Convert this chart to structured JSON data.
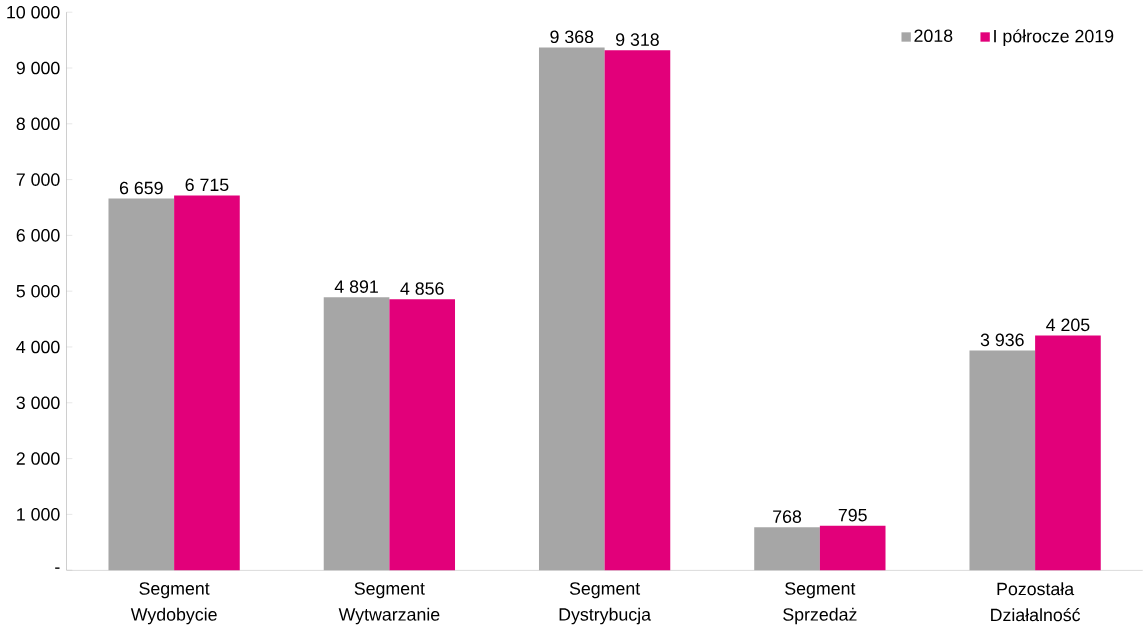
{
  "chart_data": {
    "type": "bar",
    "categories": [
      "Segment Wydobycie",
      "Segment Wytwarzanie",
      "Segment Dystrybucja",
      "Segment Sprzedaż",
      "Pozostała Działalność"
    ],
    "series": [
      {
        "name": "2018",
        "color": "#a6a6a6",
        "values": [
          6659,
          4891,
          9368,
          768,
          3936
        ],
        "value_labels": [
          "6 659",
          "4 891",
          "9 368",
          "768",
          "3 936"
        ]
      },
      {
        "name": "I półrocze 2019",
        "color": "#e2007a",
        "values": [
          6715,
          4856,
          9318,
          795,
          4205
        ],
        "value_labels": [
          "6 715",
          "4 856",
          "9 318",
          "795",
          "4 205"
        ]
      }
    ],
    "ylim": [
      0,
      10000
    ],
    "yticks": [
      {
        "value": 0,
        "label": "-"
      },
      {
        "value": 1000,
        "label": "1 000"
      },
      {
        "value": 2000,
        "label": "2 000"
      },
      {
        "value": 3000,
        "label": "3 000"
      },
      {
        "value": 4000,
        "label": "4 000"
      },
      {
        "value": 5000,
        "label": "5 000"
      },
      {
        "value": 6000,
        "label": "6 000"
      },
      {
        "value": 7000,
        "label": "7 000"
      },
      {
        "value": 8000,
        "label": "8 000"
      },
      {
        "value": 9000,
        "label": "9 000"
      },
      {
        "value": 10000,
        "label": "10 000"
      }
    ],
    "grid": false,
    "legend": "top right"
  }
}
